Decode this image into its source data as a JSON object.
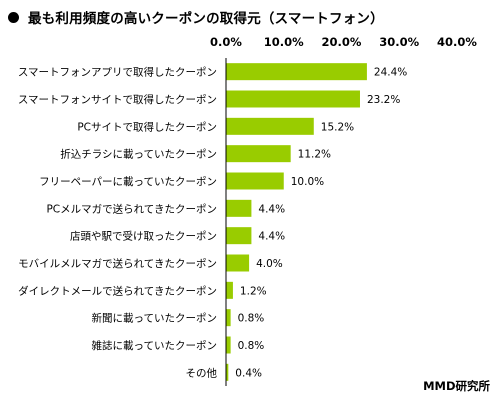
{
  "title": "最も利用頻度の高いクーポンの取得元（スマートフォン）",
  "source": "MMD研究所",
  "colors": {
    "bar": "#99cc00",
    "axis": "#000000"
  },
  "chart_data": {
    "type": "bar",
    "orientation": "horizontal",
    "categories": [
      "スマートフォンアプリで取得したクーポン",
      "スマートフォンサイトで取得したクーポン",
      "PCサイトで取得したクーポン",
      "折込チラシに載っていたクーポン",
      "フリーペーパーに載っていたクーポン",
      "PCメルマガで送られてきたクーポン",
      "店頭や駅で受け取ったクーポン",
      "モバイルメルマガで送られてきたクーポン",
      "ダイレクトメールで送られてきたクーポン",
      "新聞に載っていたクーポン",
      "雑誌に載っていたクーポン",
      "その他"
    ],
    "values": [
      24.4,
      23.2,
      15.2,
      11.2,
      10.0,
      4.4,
      4.4,
      4.0,
      1.2,
      0.8,
      0.8,
      0.4
    ],
    "value_labels": [
      "24.4%",
      "23.2%",
      "15.2%",
      "11.2%",
      "10.0%",
      "4.4%",
      "4.4%",
      "4.0%",
      "1.2%",
      "0.8%",
      "0.8%",
      "0.4%"
    ],
    "xlim": [
      0,
      40
    ],
    "ticks": [
      0,
      10,
      20,
      30,
      40
    ],
    "tick_labels": [
      "0.0%",
      "10.0%",
      "20.0%",
      "30.0%",
      "40.0%"
    ],
    "tick_position": "top",
    "grid": false
  }
}
